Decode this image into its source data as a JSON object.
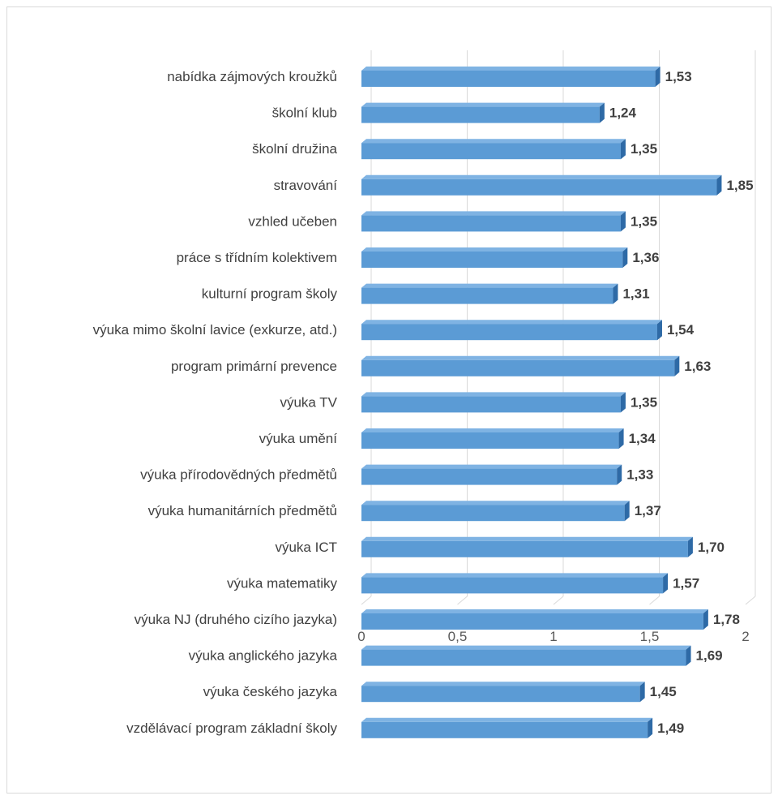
{
  "chart_data": {
    "type": "bar",
    "orientation": "horizontal",
    "style": "3d",
    "title": "",
    "xlabel": "",
    "ylabel": "",
    "xlim": [
      0,
      2
    ],
    "x_ticks": [
      "0",
      "0,5",
      "1",
      "1,5",
      "2"
    ],
    "grid": true,
    "legend": "none",
    "bar_color": "#5b9bd5",
    "categories": [
      "nabídka zájmových kroužků",
      "školní klub",
      "školní družina",
      "stravování",
      "vzhled učeben",
      "práce s třídním kolektivem",
      "kulturní program školy",
      "výuka mimo školní lavice (exkurze, atd.)",
      "program primární prevence",
      "výuka TV",
      "výuka umění",
      "výuka přírodovědných předmětů",
      "výuka humanitárních předmětů",
      "výuka ICT",
      "výuka matematiky",
      "výuka NJ (druhého cizího jazyka)",
      "výuka anglického jazyka",
      "výuka českého jazyka",
      "vzdělávací program základní školy"
    ],
    "values": [
      1.53,
      1.24,
      1.35,
      1.85,
      1.35,
      1.36,
      1.31,
      1.54,
      1.63,
      1.35,
      1.34,
      1.33,
      1.37,
      1.7,
      1.57,
      1.78,
      1.69,
      1.45,
      1.49
    ],
    "value_labels": [
      "1,53",
      "1,24",
      "1,35",
      "1,85",
      "1,35",
      "1,36",
      "1,31",
      "1,54",
      "1,63",
      "1,35",
      "1,34",
      "1,33",
      "1,37",
      "1,70",
      "1,57",
      "1,78",
      "1,69",
      "1,45",
      "1,49"
    ]
  }
}
